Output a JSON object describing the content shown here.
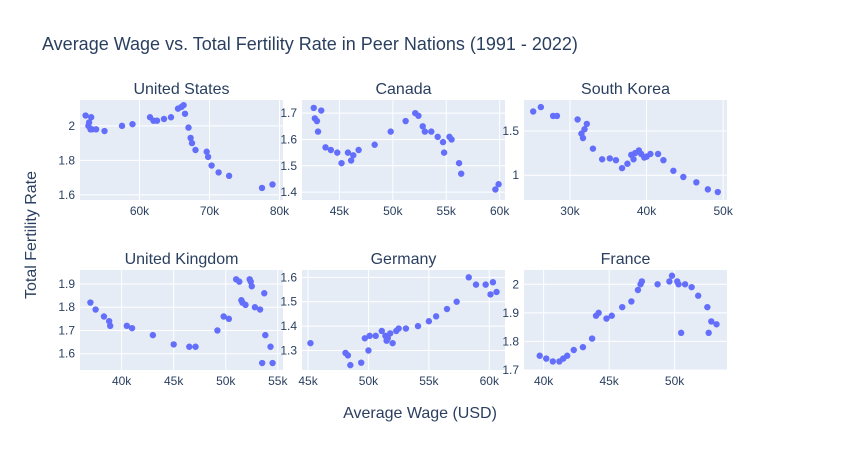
{
  "title": "Average Wage vs. Total Fertility Rate in Peer Nations (1991 - 2022)",
  "xlabel": "Average Wage (USD)",
  "ylabel": "Total Fertility Rate",
  "colors": {
    "marker": "#636efa",
    "plot_bg": "#e5ecf6",
    "grid": "#ffffff",
    "text": "#2a3f5f"
  },
  "chart_data": [
    {
      "type": "scatter",
      "title": "United States",
      "xlim": [
        51500,
        80500
      ],
      "ylim": [
        1.57,
        2.15
      ],
      "xticks": [
        60000,
        70000,
        80000
      ],
      "xtick_labels": [
        "60k",
        "70k",
        "80k"
      ],
      "yticks": [
        1.6,
        1.8,
        2.0
      ],
      "ytick_labels": [
        "1.6",
        "1.8",
        "2"
      ],
      "x": [
        52300,
        52700,
        52800,
        53000,
        53100,
        53200,
        53800,
        55000,
        57500,
        59000,
        61500,
        62000,
        62500,
        63500,
        64500,
        65500,
        66000,
        66300,
        66500,
        67000,
        67300,
        67500,
        68000,
        69600,
        69800,
        70300,
        71300,
        72800,
        77500,
        79000
      ],
      "y": [
        2.06,
        2.0,
        2.02,
        1.98,
        2.05,
        1.98,
        1.98,
        1.97,
        2.0,
        2.01,
        2.05,
        2.03,
        2.03,
        2.04,
        2.05,
        2.1,
        2.11,
        2.12,
        2.07,
        1.99,
        1.93,
        1.9,
        1.86,
        1.85,
        1.82,
        1.77,
        1.73,
        1.71,
        1.64,
        1.66
      ]
    },
    {
      "type": "scatter",
      "title": "Canada",
      "xlim": [
        41500,
        60500
      ],
      "ylim": [
        1.37,
        1.75
      ],
      "xticks": [
        45000,
        50000,
        55000,
        60000
      ],
      "xtick_labels": [
        "45k",
        "50k",
        "55k",
        "60k"
      ],
      "yticks": [
        1.4,
        1.5,
        1.6,
        1.7
      ],
      "ytick_labels": [
        "1.4",
        "1.5",
        "1.6",
        "1.7"
      ],
      "x": [
        42600,
        42700,
        42900,
        43000,
        43300,
        43700,
        44200,
        44800,
        45200,
        45800,
        46100,
        46300,
        46800,
        48300,
        49800,
        51200,
        52100,
        52400,
        52800,
        53000,
        53600,
        54200,
        54700,
        54800,
        55300,
        55500,
        56200,
        56400,
        59600,
        59900
      ],
      "y": [
        1.72,
        1.68,
        1.67,
        1.63,
        1.71,
        1.57,
        1.56,
        1.55,
        1.51,
        1.55,
        1.52,
        1.54,
        1.56,
        1.58,
        1.63,
        1.67,
        1.7,
        1.69,
        1.65,
        1.63,
        1.63,
        1.61,
        1.59,
        1.55,
        1.61,
        1.6,
        1.51,
        1.47,
        1.41,
        1.43
      ]
    },
    {
      "type": "scatter",
      "title": "South Korea",
      "xlim": [
        24000,
        50500
      ],
      "ylim": [
        0.72,
        1.85
      ],
      "xticks": [
        30000,
        40000,
        50000
      ],
      "xtick_labels": [
        "30k",
        "40k",
        "50k"
      ],
      "yticks": [
        1.0,
        1.5
      ],
      "ytick_labels": [
        "1",
        "1.5"
      ],
      "x": [
        25200,
        26200,
        27800,
        28300,
        31000,
        31500,
        31700,
        31900,
        32200,
        33000,
        34200,
        35200,
        36000,
        36800,
        37500,
        38000,
        38300,
        38500,
        39000,
        39300,
        39700,
        40000,
        40500,
        41500,
        42200,
        43500,
        44800,
        46500,
        48000,
        49300
      ],
      "y": [
        1.72,
        1.77,
        1.67,
        1.67,
        1.63,
        1.47,
        1.42,
        1.52,
        1.58,
        1.3,
        1.18,
        1.19,
        1.17,
        1.08,
        1.13,
        1.23,
        1.18,
        1.25,
        1.28,
        1.24,
        1.2,
        1.21,
        1.24,
        1.24,
        1.17,
        1.05,
        0.98,
        0.92,
        0.84,
        0.81
      ]
    },
    {
      "type": "scatter",
      "title": "United Kingdom",
      "xlim": [
        36000,
        55500
      ],
      "ylim": [
        1.53,
        1.96
      ],
      "xticks": [
        40000,
        45000,
        50000,
        55000
      ],
      "xtick_labels": [
        "40k",
        "45k",
        "50k",
        "55k"
      ],
      "yticks": [
        1.6,
        1.7,
        1.8,
        1.9
      ],
      "ytick_labels": [
        "1.6",
        "1.7",
        "1.8",
        "1.9"
      ],
      "x": [
        37000,
        37500,
        38300,
        38800,
        38900,
        40500,
        41000,
        43000,
        45000,
        46500,
        47100,
        49200,
        49800,
        50300,
        51000,
        51300,
        51500,
        51600,
        51900,
        52300,
        52400,
        52500,
        52800,
        53300,
        53500,
        53700,
        53800,
        54300,
        54500
      ],
      "y": [
        1.82,
        1.79,
        1.76,
        1.74,
        1.72,
        1.72,
        1.71,
        1.68,
        1.64,
        1.63,
        1.63,
        1.7,
        1.76,
        1.75,
        1.92,
        1.91,
        1.83,
        1.82,
        1.81,
        1.92,
        1.91,
        1.89,
        1.8,
        1.79,
        1.56,
        1.86,
        1.68,
        1.63,
        1.56
      ]
    },
    {
      "type": "scatter",
      "title": "Germany",
      "xlim": [
        44500,
        61300
      ],
      "ylim": [
        1.22,
        1.63
      ],
      "xticks": [
        45000,
        50000,
        55000,
        60000
      ],
      "xtick_labels": [
        "45k",
        "50k",
        "55k",
        "60k"
      ],
      "yticks": [
        1.3,
        1.4,
        1.5,
        1.6
      ],
      "ytick_labels": [
        "1.3",
        "1.4",
        "1.5",
        "1.6"
      ],
      "x": [
        45200,
        48100,
        48300,
        48500,
        49400,
        49700,
        50000,
        50100,
        50600,
        51100,
        51400,
        51500,
        51600,
        51800,
        52000,
        52300,
        52500,
        53100,
        54100,
        55000,
        55600,
        56500,
        57300,
        58300,
        58900,
        59700,
        60100,
        60300,
        60600
      ],
      "y": [
        1.33,
        1.29,
        1.28,
        1.24,
        1.25,
        1.35,
        1.3,
        1.36,
        1.36,
        1.38,
        1.36,
        1.34,
        1.35,
        1.37,
        1.33,
        1.38,
        1.39,
        1.39,
        1.4,
        1.42,
        1.44,
        1.47,
        1.5,
        1.6,
        1.57,
        1.57,
        1.53,
        1.58,
        1.54
      ]
    },
    {
      "type": "scatter",
      "title": "France",
      "xlim": [
        38500,
        54000
      ],
      "ylim": [
        1.7,
        2.05
      ],
      "xticks": [
        40000,
        45000,
        50000
      ],
      "xtick_labels": [
        "40k",
        "45k",
        "50k"
      ],
      "yticks": [
        1.7,
        1.8,
        1.9,
        2.0
      ],
      "ytick_labels": [
        "1.7",
        "1.8",
        "1.9",
        "2"
      ],
      "x": [
        39700,
        40200,
        40700,
        41200,
        41500,
        41800,
        42300,
        43000,
        43700,
        44000,
        44200,
        44800,
        45200,
        46000,
        46700,
        47200,
        47400,
        47500,
        48700,
        49600,
        49800,
        50200,
        50300,
        50500,
        50800,
        51300,
        51800,
        52500,
        52600,
        52800,
        53200
      ],
      "y": [
        1.75,
        1.74,
        1.73,
        1.73,
        1.74,
        1.75,
        1.77,
        1.78,
        1.81,
        1.89,
        1.9,
        1.88,
        1.89,
        1.92,
        1.94,
        1.98,
        2.0,
        2.01,
        2.0,
        2.01,
        2.03,
        2.01,
        2.0,
        1.83,
        2.0,
        1.99,
        1.96,
        1.92,
        1.83,
        1.87,
        1.86
      ]
    }
  ]
}
